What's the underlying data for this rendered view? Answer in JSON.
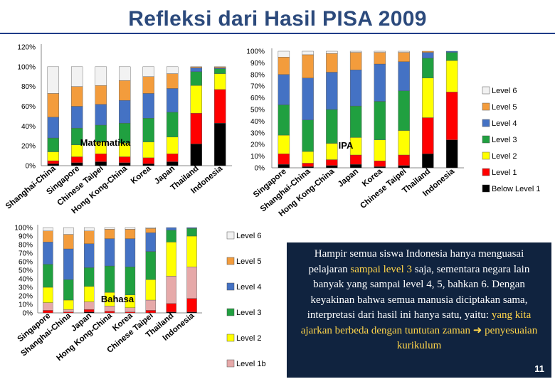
{
  "slide": {
    "title": "Refleksi dari Hasil PISA 2009",
    "page_number": "11"
  },
  "colors": {
    "Below Level 1": "#000000",
    "Level 1": "#ff0000",
    "Level 1b": "#e6a9a9",
    "Level 2": "#ffff00",
    "Level 3": "#20a040",
    "Level 4": "#4472c4",
    "Level 5": "#f39c3c",
    "Level 6": "#f2f2f2"
  },
  "textbox": {
    "t1": "Hampir semua siswa Indonesia hanya menguasai pelajaran ",
    "t2": "sampai level 3",
    "t3": " saja, sementara negara lain banyak yang sampai level 4, 5, bahkan 6. Dengan keyakinan bahwa semua manusia diciptakan sama, interpretasi dari hasil ini hanya satu, yaitu: ",
    "t4": "yang kita ajarkan berbeda dengan tuntutan zaman",
    "t5": " penyesuaian kurikulum"
  },
  "chart_data": [
    {
      "type": "bar",
      "stacked": true,
      "title": "Matematika",
      "ylim": [
        0,
        120
      ],
      "yticks": [
        "0%",
        "20%",
        "40%",
        "60%",
        "80%",
        "100%",
        "120%"
      ],
      "categories": [
        "Shanghai-China",
        "Singapore",
        "Chinese Taipei",
        "Hong Kong-China",
        "Korea",
        "Japan",
        "Thailand",
        "Indonesia"
      ],
      "series": [
        {
          "name": "Below Level 1",
          "values": [
            2,
            3,
            4,
            3,
            2,
            4,
            22,
            43
          ]
        },
        {
          "name": "Level 1",
          "values": [
            3,
            6,
            8,
            6,
            6,
            8,
            31,
            34
          ]
        },
        {
          "name": "Level 2",
          "values": [
            9,
            12,
            12,
            14,
            16,
            17,
            28,
            16
          ]
        },
        {
          "name": "Level 3",
          "values": [
            14,
            17,
            17,
            20,
            24,
            25,
            14,
            5
          ]
        },
        {
          "name": "Level 4",
          "values": [
            21,
            22,
            21,
            23,
            25,
            24,
            4,
            1
          ]
        },
        {
          "name": "Level 5",
          "values": [
            24,
            20,
            19,
            20,
            17,
            15,
            1,
            1
          ]
        },
        {
          "name": "Level 6",
          "values": [
            27,
            20,
            19,
            14,
            10,
            7,
            0,
            0
          ]
        }
      ]
    },
    {
      "type": "bar",
      "stacked": true,
      "title": "IPA",
      "ylim": [
        0,
        100
      ],
      "yticks": [
        "0%",
        "10%",
        "20%",
        "30%",
        "40%",
        "50%",
        "60%",
        "70%",
        "80%",
        "90%",
        "100%"
      ],
      "categories": [
        "Singapore",
        "Shanghai-China",
        "Hong Kong-China",
        "Japan",
        "Korea",
        "Chinese Taipei",
        "Thailand",
        "Indonesia"
      ],
      "series": [
        {
          "name": "Below Level 1",
          "values": [
            3,
            1,
            2,
            3,
            1,
            2,
            12,
            24
          ]
        },
        {
          "name": "Level 1",
          "values": [
            9,
            3,
            5,
            8,
            5,
            9,
            31,
            41
          ]
        },
        {
          "name": "Level 2",
          "values": [
            16,
            10,
            14,
            15,
            18,
            21,
            34,
            27
          ]
        },
        {
          "name": "Level 3",
          "values": [
            26,
            27,
            29,
            27,
            33,
            34,
            17,
            7
          ]
        },
        {
          "name": "Level 4",
          "values": [
            26,
            36,
            32,
            31,
            32,
            25,
            5,
            1
          ]
        },
        {
          "name": "Level 5",
          "values": [
            15,
            20,
            16,
            15,
            10,
            8,
            1,
            0
          ]
        },
        {
          "name": "Level 6",
          "values": [
            5,
            3,
            2,
            1,
            1,
            1,
            0,
            0
          ]
        }
      ]
    },
    {
      "type": "bar",
      "stacked": true,
      "title": "Bahasa",
      "ylim": [
        0,
        100
      ],
      "yticks": [
        "0%",
        "10%",
        "20%",
        "30%",
        "40%",
        "50%",
        "60%",
        "70%",
        "80%",
        "90%",
        "100%"
      ],
      "categories": [
        "Singapore",
        "Shanghai-China",
        "Japan",
        "Hong Kong-China",
        "Korea",
        "Chinese Taipei",
        "Thailand",
        "Indonesia"
      ],
      "series": [
        {
          "name": "Below Level 1",
          "values": [
            0,
            0,
            1,
            0,
            0,
            0,
            1,
            1
          ]
        },
        {
          "name": "Level 1",
          "values": [
            3,
            1,
            3,
            2,
            1,
            3,
            10,
            16
          ]
        },
        {
          "name": "Level 1b",
          "values": [
            9,
            3,
            9,
            6,
            5,
            12,
            32,
            37
          ]
        },
        {
          "name": "Level 2",
          "values": [
            18,
            11,
            18,
            16,
            15,
            24,
            40,
            36
          ]
        },
        {
          "name": "Level 3",
          "values": [
            27,
            24,
            22,
            31,
            33,
            33,
            14,
            9
          ]
        },
        {
          "name": "Level 4",
          "values": [
            26,
            36,
            28,
            32,
            33,
            22,
            3,
            1
          ]
        },
        {
          "name": "Level 5",
          "values": [
            13,
            17,
            15,
            11,
            11,
            5,
            0,
            0
          ]
        },
        {
          "name": "Level 6",
          "values": [
            4,
            8,
            4,
            2,
            2,
            1,
            0,
            0
          ]
        }
      ]
    }
  ],
  "legends": {
    "right": [
      "Level 6",
      "Level 5",
      "Level 4",
      "Level 3",
      "Level 2",
      "Level 1",
      "Below Level 1"
    ],
    "bottom": [
      "Level 6",
      "Level 5",
      "Level 4",
      "Level 3",
      "Level 2",
      "Level 1b"
    ]
  }
}
